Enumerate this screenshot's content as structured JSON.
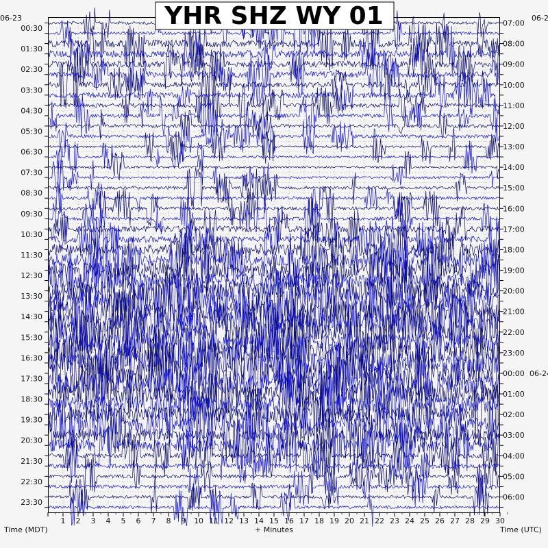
{
  "chart_data": {
    "type": "line",
    "title": "YHR SHZ WY 01",
    "xlabel": "+ Minutes",
    "xlim": [
      0,
      30
    ],
    "x_ticks": [
      "1",
      "2",
      "3",
      "4",
      "5",
      "6",
      "7",
      "8",
      "9",
      "10",
      "11",
      "12",
      "13",
      "14",
      "15",
      "16",
      "17",
      "18",
      "19",
      "20",
      "21",
      "22",
      "23",
      "24",
      "25",
      "26",
      "27",
      "28",
      "29",
      "30"
    ],
    "left_axis": {
      "label": "Time (MDT)",
      "date_label": "06-23",
      "tick_labels": [
        "00:30",
        "01:30",
        "02:30",
        "03:30",
        "04:30",
        "05:30",
        "06:30",
        "07:30",
        "08:30",
        "09:30",
        "10:30",
        "11:30",
        "12:30",
        "13:30",
        "14:30",
        "15:30",
        "16:30",
        "17:30",
        "18:30",
        "19:30",
        "20:30",
        "21:30",
        "22:30",
        "23:30"
      ]
    },
    "right_axis": {
      "label": "Time (UTC)",
      "date_label": "06-2",
      "date_label_next": "06-24",
      "tick_labels": [
        "07:00",
        "08:00",
        "09:00",
        "10:00",
        "11:00",
        "12:00",
        "13:00",
        "14:00",
        "15:00",
        "16:00",
        "17:00",
        "18:00",
        "19:00",
        "20:00",
        "21:00",
        "22:00",
        "23:00",
        "00:00",
        "01:00",
        "02:00",
        "03:00",
        "04:00",
        "05:00",
        "06:00"
      ]
    },
    "trace_rows": 48,
    "minutes_per_row": 30,
    "activity_by_hour_mdt": [
      0.25,
      0.55,
      0.5,
      0.45,
      0.35,
      0.3,
      0.18,
      0.18,
      0.28,
      0.3,
      0.5,
      0.75,
      0.85,
      1.0,
      1.0,
      0.95,
      1.0,
      1.0,
      0.9,
      0.85,
      0.75,
      0.4,
      0.3,
      0.25
    ],
    "series": [
      {
        "color": "#0a0a6e"
      },
      {
        "color": "#1111dd"
      }
    ],
    "grid": true,
    "grid_minutes": 30
  }
}
